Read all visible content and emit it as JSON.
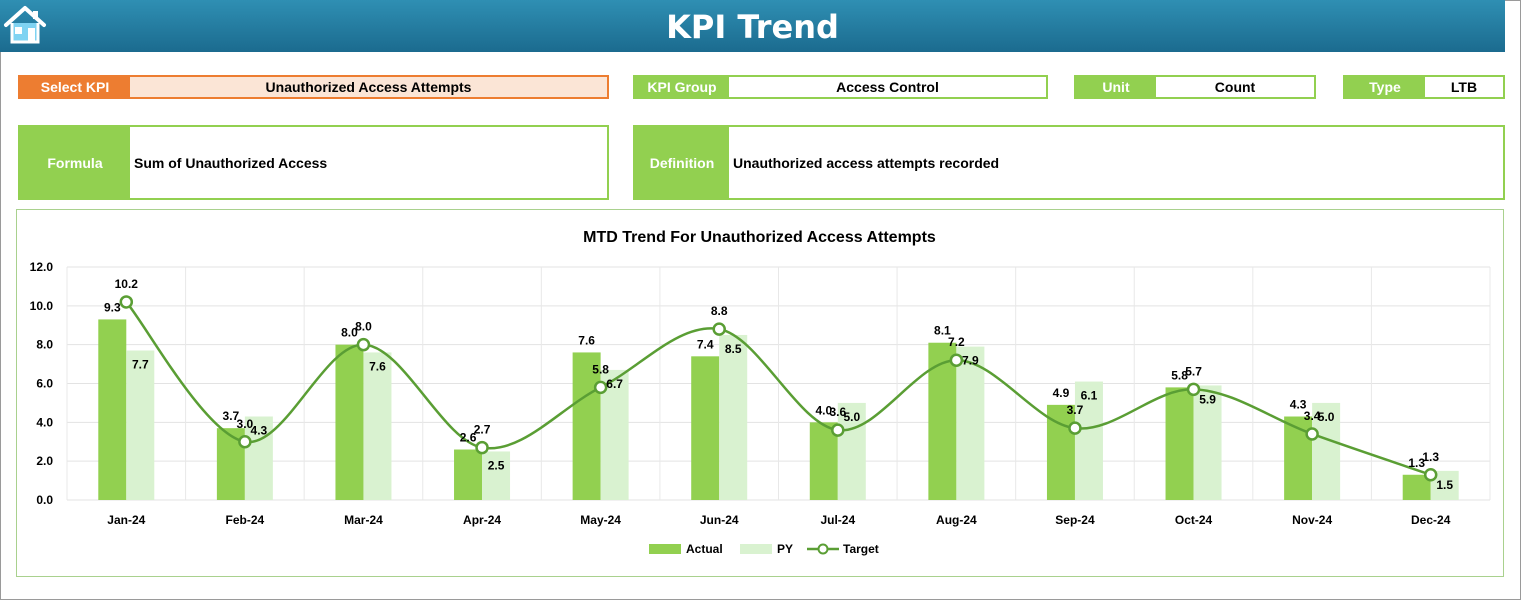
{
  "header": {
    "title": "KPI Trend",
    "home_icon": "home-icon"
  },
  "select_kpi": {
    "label": "Select KPI",
    "value": "Unauthorized Access Attempts"
  },
  "kpi_group": {
    "label": "KPI Group",
    "value": "Access Control"
  },
  "unit": {
    "label": "Unit",
    "value": "Count"
  },
  "type": {
    "label": "Type",
    "value": "LTB"
  },
  "formula": {
    "label": "Formula",
    "value": "Sum of Unauthorized Access"
  },
  "definition": {
    "label": "Definition",
    "value": "Unauthorized access attempts recorded"
  },
  "colors": {
    "accent_green": "#92d050",
    "py_green": "#d9f2d0",
    "target_line": "#5a9e34",
    "select_orange": "#ed7d31",
    "header_blue": "#1b6b8f"
  },
  "chart_data": {
    "type": "bar",
    "title": "MTD Trend For Unauthorized Access Attempts",
    "categories": [
      "Jan-24",
      "Feb-24",
      "Mar-24",
      "Apr-24",
      "May-24",
      "Jun-24",
      "Jul-24",
      "Aug-24",
      "Sep-24",
      "Oct-24",
      "Nov-24",
      "Dec-24"
    ],
    "series": [
      {
        "name": "Actual",
        "kind": "bar",
        "values": [
          9.3,
          3.7,
          8.0,
          2.6,
          7.6,
          7.4,
          4.0,
          8.1,
          4.9,
          5.8,
          4.3,
          1.3
        ]
      },
      {
        "name": "PY",
        "kind": "bar",
        "values": [
          7.7,
          4.3,
          7.6,
          2.5,
          6.7,
          8.5,
          5.0,
          7.9,
          6.1,
          5.9,
          5.0,
          1.5
        ]
      },
      {
        "name": "Target",
        "kind": "line",
        "values": [
          10.2,
          3.0,
          8.0,
          2.7,
          5.8,
          8.8,
          3.6,
          7.2,
          3.7,
          5.7,
          3.4,
          1.3
        ]
      }
    ],
    "ylim": [
      0,
      12
    ],
    "yticks": [
      "0.0",
      "2.0",
      "4.0",
      "6.0",
      "8.0",
      "10.0",
      "12.0"
    ],
    "grid": true,
    "legend": "bottom"
  }
}
